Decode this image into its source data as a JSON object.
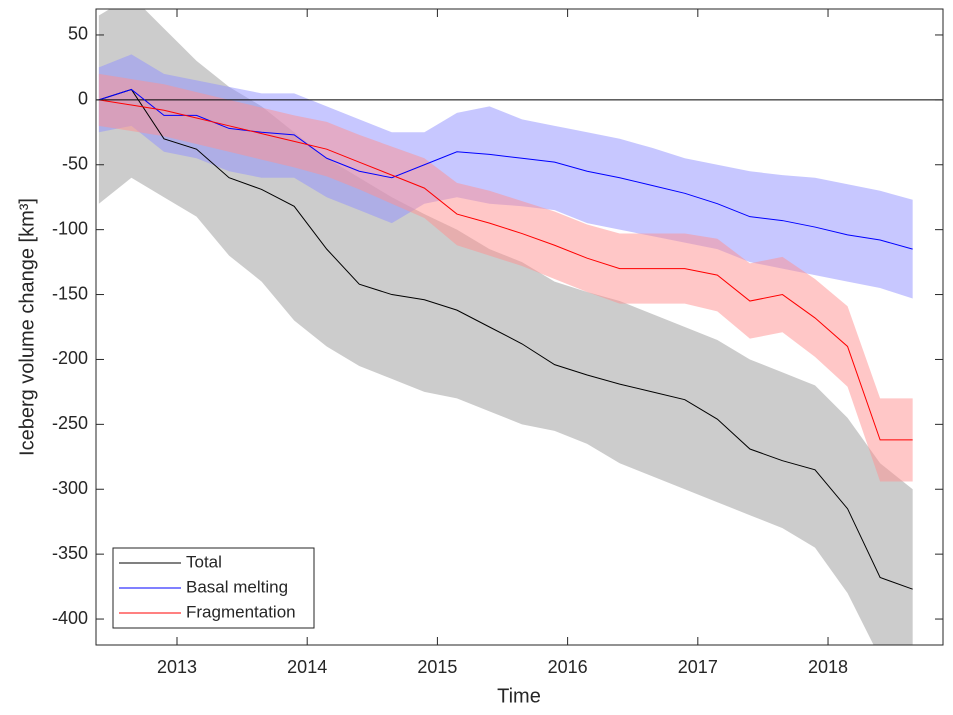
{
  "chart_data": {
    "type": "line",
    "xlabel": "Time",
    "ylabel": "Iceberg volume change [km³]",
    "x": [
      2012.4,
      2012.65,
      2012.9,
      2013.15,
      2013.4,
      2013.65,
      2013.9,
      2014.15,
      2014.4,
      2014.65,
      2014.9,
      2015.15,
      2015.4,
      2015.65,
      2015.9,
      2016.15,
      2016.4,
      2016.65,
      2016.9,
      2017.15,
      2017.4,
      2017.65,
      2017.9,
      2018.15,
      2018.4,
      2018.65
    ],
    "series": [
      {
        "name": "Total",
        "color": "#000000",
        "band_color": "#999999",
        "values": [
          0,
          8,
          -30,
          -38,
          -60,
          -69,
          -82,
          -115,
          -142,
          -150,
          -154,
          -162,
          -175,
          -188,
          -204,
          -212,
          -219,
          -225,
          -231,
          -246,
          -269,
          -278,
          -285,
          -315,
          -368,
          -377
        ],
        "band_upper": [
          65,
          80,
          55,
          30,
          10,
          -5,
          -25,
          -45,
          -60,
          -75,
          -88,
          -100,
          -115,
          -125,
          -140,
          -148,
          -155,
          -165,
          -175,
          -185,
          -200,
          -210,
          -220,
          -245,
          -280,
          -300
        ],
        "band_lower": [
          -80,
          -60,
          -75,
          -90,
          -120,
          -140,
          -170,
          -190,
          -205,
          -215,
          -225,
          -230,
          -240,
          -250,
          -255,
          -265,
          -280,
          -290,
          -300,
          -310,
          -320,
          -330,
          -345,
          -380,
          -430,
          -440
        ]
      },
      {
        "name": "Basal melting",
        "color": "#0000ff",
        "band_color": "#8f8fff",
        "values": [
          0,
          8,
          -12,
          -12,
          -22,
          -25,
          -27,
          -45,
          -55,
          -60,
          -50,
          -40,
          -42,
          -45,
          -48,
          -55,
          -60,
          -66,
          -72,
          -80,
          -90,
          -93,
          -98,
          -104,
          -108,
          -115
        ],
        "band_upper": [
          25,
          35,
          20,
          15,
          10,
          5,
          5,
          -5,
          -15,
          -25,
          -25,
          -10,
          -5,
          -15,
          -20,
          -25,
          -30,
          -37,
          -45,
          -50,
          -55,
          -58,
          -60,
          -65,
          -70,
          -77
        ],
        "band_lower": [
          -25,
          -20,
          -40,
          -45,
          -55,
          -60,
          -60,
          -75,
          -85,
          -95,
          -80,
          -75,
          -80,
          -82,
          -85,
          -95,
          -100,
          -105,
          -110,
          -115,
          -125,
          -130,
          -135,
          -140,
          -145,
          -153
        ]
      },
      {
        "name": "Fragmentation",
        "color": "#ff0000",
        "band_color": "#ff8f8f",
        "values": [
          0,
          -4,
          -8,
          -14,
          -20,
          -26,
          -32,
          -38,
          -48,
          -58,
          -68,
          -88,
          -95,
          -103,
          -112,
          -122,
          -130,
          -130,
          -130,
          -135,
          -155,
          -150,
          -168,
          -190,
          -262,
          -262
        ],
        "band_upper": [
          20,
          16,
          12,
          6,
          0,
          -6,
          -12,
          -17,
          -27,
          -36,
          -45,
          -64,
          -70,
          -78,
          -86,
          -96,
          -103,
          -103,
          -103,
          -107,
          -126,
          -121,
          -138,
          -159,
          -230,
          -230
        ],
        "band_lower": [
          -20,
          -24,
          -28,
          -34,
          -40,
          -46,
          -52,
          -59,
          -69,
          -80,
          -91,
          -112,
          -120,
          -128,
          -138,
          -148,
          -157,
          -157,
          -157,
          -163,
          -184,
          -179,
          -198,
          -221,
          -294,
          -294
        ]
      }
    ],
    "hline": 0,
    "xlim": [
      2012.378,
      2018.883
    ],
    "xticks": [
      2013,
      2014,
      2015,
      2016,
      2017,
      2018
    ],
    "ylim": [
      -420,
      70
    ],
    "yticks": [
      50,
      0,
      -50,
      -100,
      -150,
      -200,
      -250,
      -300,
      -350,
      -400
    ],
    "legend": "lower left",
    "grid": false
  }
}
